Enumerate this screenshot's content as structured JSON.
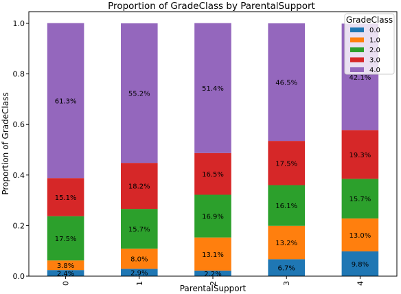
{
  "chart_data": {
    "type": "bar",
    "stacked": true,
    "title": "Proportion of GradeClass by ParentalSupport",
    "xlabel": "ParentalSupport",
    "ylabel": "Proportion of GradeClass",
    "categories": [
      "0",
      "1",
      "2",
      "3",
      "4"
    ],
    "ylim": [
      0,
      1.0
    ],
    "yticks": [
      "0.0",
      "0.2",
      "0.4",
      "0.6",
      "0.8",
      "1.0"
    ],
    "legend": {
      "title": "GradeClass",
      "placement": "top-right"
    },
    "grid": false,
    "series": [
      {
        "name": "0.0",
        "color": "#1f77b4",
        "values": [
          0.024,
          0.029,
          0.022,
          0.067,
          0.098
        ],
        "labels": [
          "2.4%",
          "2.9%",
          "2.2%",
          "6.7%",
          "9.8%"
        ]
      },
      {
        "name": "1.0",
        "color": "#ff7f0e",
        "values": [
          0.038,
          0.08,
          0.131,
          0.132,
          0.13
        ],
        "labels": [
          "3.8%",
          "8.0%",
          "13.1%",
          "13.2%",
          "13.0%"
        ]
      },
      {
        "name": "2.0",
        "color": "#2ca02c",
        "values": [
          0.175,
          0.157,
          0.169,
          0.161,
          0.157
        ],
        "labels": [
          "17.5%",
          "15.7%",
          "16.9%",
          "16.1%",
          "15.7%"
        ]
      },
      {
        "name": "3.0",
        "color": "#d62728",
        "values": [
          0.151,
          0.182,
          0.165,
          0.175,
          0.193
        ],
        "labels": [
          "15.1%",
          "18.2%",
          "16.5%",
          "17.5%",
          "19.3%"
        ]
      },
      {
        "name": "4.0",
        "color": "#9467bd",
        "values": [
          0.613,
          0.552,
          0.514,
          0.465,
          0.421
        ],
        "labels": [
          "61.3%",
          "55.2%",
          "51.4%",
          "46.5%",
          "42.1%"
        ]
      }
    ]
  }
}
